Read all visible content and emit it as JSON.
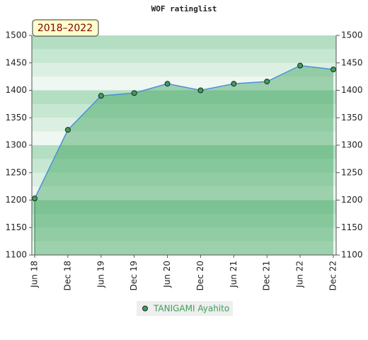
{
  "chart_data": {
    "type": "area",
    "title": "WOF ratinglist",
    "period_label": "2018–2022",
    "categories": [
      "Jun 18",
      "Dec 18",
      "Jun 19",
      "Dec 19",
      "Jun 20",
      "Dec 20",
      "Jun 21",
      "Dec 21",
      "Jun 22",
      "Dec 22"
    ],
    "series": [
      {
        "name": "TANIGAMI Ayahito",
        "color": "#3aa05a",
        "values": [
          1203,
          1328,
          1390,
          1395,
          1412,
          1400,
          1412,
          1416,
          1445,
          1438
        ]
      }
    ],
    "ylim": [
      1100,
      1500
    ],
    "yticks": [
      1100,
      1150,
      1200,
      1250,
      1300,
      1350,
      1400,
      1450,
      1500
    ]
  }
}
